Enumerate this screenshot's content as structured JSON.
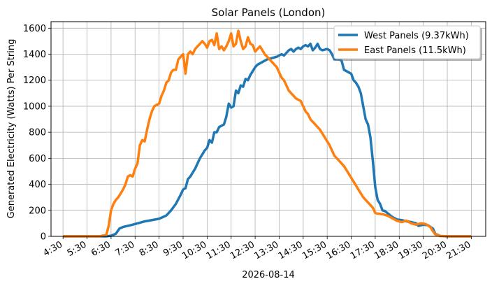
{
  "chart_data": {
    "type": "line",
    "title": "Solar Panels (London)",
    "xlabel": "2026-08-14",
    "ylabel": "Generated Electricity (Watts) Per String",
    "x_tick_labels": [
      "4:30",
      "5:30",
      "6:30",
      "7:30",
      "8:30",
      "9:30",
      "10:30",
      "11:30",
      "12:30",
      "13:30",
      "14:30",
      "15:30",
      "16:30",
      "17:30",
      "18:30",
      "19:30",
      "20:30",
      "21:30"
    ],
    "x_tick_hours": [
      4.5,
      5.5,
      6.5,
      7.5,
      8.5,
      9.5,
      10.5,
      11.5,
      12.5,
      13.5,
      14.5,
      15.5,
      16.5,
      17.5,
      18.5,
      19.5,
      20.5,
      21.5
    ],
    "xlim_hours": [
      4.0,
      22.1
    ],
    "y_ticks": [
      0,
      200,
      400,
      600,
      800,
      1000,
      1200,
      1400,
      1600
    ],
    "ylim": [
      0,
      1650
    ],
    "grid": true,
    "legend_position": "top-right",
    "series": [
      {
        "name": "West Panels (9.37kWh)",
        "color": "#1f77b4",
        "points": [
          [
            4.5,
            0
          ],
          [
            5.5,
            0
          ],
          [
            6.3,
            0
          ],
          [
            6.5,
            5
          ],
          [
            6.7,
            20
          ],
          [
            6.85,
            60
          ],
          [
            7.0,
            72
          ],
          [
            7.3,
            85
          ],
          [
            7.6,
            100
          ],
          [
            7.9,
            115
          ],
          [
            8.2,
            125
          ],
          [
            8.5,
            135
          ],
          [
            8.8,
            160
          ],
          [
            9.0,
            200
          ],
          [
            9.2,
            250
          ],
          [
            9.4,
            320
          ],
          [
            9.5,
            360
          ],
          [
            9.6,
            370
          ],
          [
            9.7,
            440
          ],
          [
            9.8,
            460
          ],
          [
            10.0,
            520
          ],
          [
            10.2,
            600
          ],
          [
            10.4,
            660
          ],
          [
            10.5,
            680
          ],
          [
            10.6,
            740
          ],
          [
            10.7,
            720
          ],
          [
            10.8,
            800
          ],
          [
            10.9,
            800
          ],
          [
            11.0,
            840
          ],
          [
            11.2,
            860
          ],
          [
            11.3,
            920
          ],
          [
            11.4,
            1020
          ],
          [
            11.5,
            990
          ],
          [
            11.6,
            1000
          ],
          [
            11.7,
            1120
          ],
          [
            11.8,
            1100
          ],
          [
            11.9,
            1160
          ],
          [
            12.0,
            1150
          ],
          [
            12.1,
            1210
          ],
          [
            12.2,
            1200
          ],
          [
            12.3,
            1240
          ],
          [
            12.4,
            1270
          ],
          [
            12.5,
            1300
          ],
          [
            12.6,
            1320
          ],
          [
            12.8,
            1340
          ],
          [
            13.0,
            1360
          ],
          [
            13.2,
            1370
          ],
          [
            13.4,
            1380
          ],
          [
            13.6,
            1400
          ],
          [
            13.7,
            1390
          ],
          [
            13.8,
            1410
          ],
          [
            13.9,
            1430
          ],
          [
            14.0,
            1440
          ],
          [
            14.1,
            1420
          ],
          [
            14.2,
            1440
          ],
          [
            14.3,
            1450
          ],
          [
            14.4,
            1440
          ],
          [
            14.5,
            1460
          ],
          [
            14.6,
            1470
          ],
          [
            14.7,
            1460
          ],
          [
            14.8,
            1480
          ],
          [
            14.9,
            1430
          ],
          [
            15.0,
            1450
          ],
          [
            15.1,
            1480
          ],
          [
            15.2,
            1440
          ],
          [
            15.3,
            1430
          ],
          [
            15.5,
            1440
          ],
          [
            15.6,
            1430
          ],
          [
            15.7,
            1400
          ],
          [
            15.8,
            1360
          ],
          [
            16.0,
            1360
          ],
          [
            16.1,
            1350
          ],
          [
            16.2,
            1280
          ],
          [
            16.3,
            1270
          ],
          [
            16.4,
            1260
          ],
          [
            16.5,
            1250
          ],
          [
            16.6,
            1200
          ],
          [
            16.7,
            1180
          ],
          [
            16.8,
            1150
          ],
          [
            16.9,
            1100
          ],
          [
            17.0,
            1000
          ],
          [
            17.1,
            900
          ],
          [
            17.2,
            860
          ],
          [
            17.3,
            760
          ],
          [
            17.4,
            580
          ],
          [
            17.5,
            380
          ],
          [
            17.6,
            280
          ],
          [
            17.7,
            250
          ],
          [
            17.8,
            200
          ],
          [
            17.9,
            195
          ],
          [
            18.0,
            180
          ],
          [
            18.2,
            150
          ],
          [
            18.4,
            130
          ],
          [
            18.6,
            125
          ],
          [
            18.8,
            115
          ],
          [
            19.0,
            110
          ],
          [
            19.2,
            100
          ],
          [
            19.3,
            80
          ],
          [
            19.5,
            90
          ],
          [
            19.7,
            85
          ],
          [
            19.9,
            60
          ],
          [
            20.0,
            20
          ],
          [
            20.2,
            3
          ],
          [
            20.5,
            0
          ],
          [
            21.0,
            0
          ],
          [
            21.5,
            0
          ]
        ]
      },
      {
        "name": "East Panels (11.5kWh)",
        "color": "#ff7f0e",
        "points": [
          [
            4.5,
            0
          ],
          [
            5.5,
            0
          ],
          [
            6.0,
            0
          ],
          [
            6.3,
            10
          ],
          [
            6.4,
            80
          ],
          [
            6.5,
            200
          ],
          [
            6.6,
            250
          ],
          [
            6.7,
            280
          ],
          [
            6.8,
            300
          ],
          [
            6.9,
            330
          ],
          [
            7.0,
            360
          ],
          [
            7.1,
            400
          ],
          [
            7.2,
            460
          ],
          [
            7.3,
            470
          ],
          [
            7.4,
            460
          ],
          [
            7.5,
            520
          ],
          [
            7.6,
            560
          ],
          [
            7.7,
            700
          ],
          [
            7.8,
            740
          ],
          [
            7.9,
            730
          ],
          [
            8.0,
            820
          ],
          [
            8.1,
            900
          ],
          [
            8.2,
            960
          ],
          [
            8.3,
            1000
          ],
          [
            8.4,
            1010
          ],
          [
            8.5,
            1020
          ],
          [
            8.6,
            1080
          ],
          [
            8.7,
            1120
          ],
          [
            8.8,
            1180
          ],
          [
            8.9,
            1200
          ],
          [
            9.0,
            1260
          ],
          [
            9.1,
            1280
          ],
          [
            9.2,
            1280
          ],
          [
            9.3,
            1360
          ],
          [
            9.4,
            1380
          ],
          [
            9.5,
            1400
          ],
          [
            9.55,
            1330
          ],
          [
            9.6,
            1250
          ],
          [
            9.7,
            1400
          ],
          [
            9.8,
            1420
          ],
          [
            9.9,
            1400
          ],
          [
            10.0,
            1440
          ],
          [
            10.1,
            1460
          ],
          [
            10.2,
            1480
          ],
          [
            10.3,
            1500
          ],
          [
            10.4,
            1480
          ],
          [
            10.5,
            1450
          ],
          [
            10.6,
            1500
          ],
          [
            10.7,
            1510
          ],
          [
            10.8,
            1470
          ],
          [
            10.9,
            1560
          ],
          [
            11.0,
            1440
          ],
          [
            11.1,
            1460
          ],
          [
            11.2,
            1430
          ],
          [
            11.3,
            1460
          ],
          [
            11.4,
            1500
          ],
          [
            11.5,
            1560
          ],
          [
            11.6,
            1460
          ],
          [
            11.7,
            1480
          ],
          [
            11.8,
            1580
          ],
          [
            11.9,
            1500
          ],
          [
            12.0,
            1440
          ],
          [
            12.1,
            1460
          ],
          [
            12.2,
            1530
          ],
          [
            12.3,
            1480
          ],
          [
            12.4,
            1470
          ],
          [
            12.5,
            1420
          ],
          [
            12.6,
            1440
          ],
          [
            12.7,
            1460
          ],
          [
            12.8,
            1430
          ],
          [
            12.9,
            1400
          ],
          [
            13.0,
            1380
          ],
          [
            13.2,
            1340
          ],
          [
            13.4,
            1300
          ],
          [
            13.5,
            1260
          ],
          [
            13.6,
            1220
          ],
          [
            13.7,
            1200
          ],
          [
            13.8,
            1160
          ],
          [
            13.9,
            1120
          ],
          [
            14.0,
            1100
          ],
          [
            14.2,
            1060
          ],
          [
            14.4,
            1040
          ],
          [
            14.5,
            1000
          ],
          [
            14.6,
            960
          ],
          [
            14.7,
            940
          ],
          [
            14.8,
            900
          ],
          [
            15.0,
            860
          ],
          [
            15.2,
            820
          ],
          [
            15.4,
            760
          ],
          [
            15.6,
            700
          ],
          [
            15.8,
            620
          ],
          [
            16.0,
            580
          ],
          [
            16.2,
            540
          ],
          [
            16.4,
            480
          ],
          [
            16.6,
            420
          ],
          [
            16.8,
            360
          ],
          [
            17.0,
            300
          ],
          [
            17.2,
            260
          ],
          [
            17.4,
            220
          ],
          [
            17.5,
            180
          ],
          [
            17.6,
            175
          ],
          [
            17.8,
            170
          ],
          [
            18.0,
            160
          ],
          [
            18.2,
            140
          ],
          [
            18.4,
            120
          ],
          [
            18.6,
            110
          ],
          [
            18.8,
            120
          ],
          [
            19.0,
            100
          ],
          [
            19.2,
            90
          ],
          [
            19.4,
            100
          ],
          [
            19.6,
            95
          ],
          [
            19.8,
            70
          ],
          [
            19.9,
            40
          ],
          [
            20.0,
            15
          ],
          [
            20.2,
            3
          ],
          [
            20.5,
            0
          ],
          [
            21.0,
            0
          ],
          [
            21.5,
            0
          ]
        ]
      }
    ]
  }
}
